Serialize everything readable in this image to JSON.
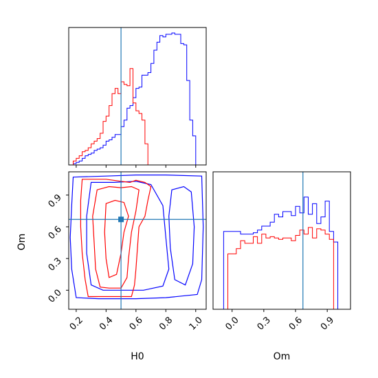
{
  "chart_data": {
    "type": "corner",
    "parameters": [
      "H0",
      "Om"
    ],
    "truth": {
      "H0": 0.5,
      "Om": 0.67
    },
    "series": [
      {
        "name": "",
        "color": "#ff0000"
      },
      {
        "name": "",
        "color": "#0000ff"
      }
    ],
    "truth_line_color": "#1f77b4",
    "panels": [
      {
        "id": "h0-marginal",
        "type": "histogram",
        "parameter": "H0",
        "xlim": [
          0.15,
          1.07
        ],
        "ylim": [
          0,
          1.0
        ],
        "x_ticks": [
          "0.2",
          "0.4",
          "0.6",
          "0.8",
          "1.0"
        ],
        "x_tick_values": [
          0.2,
          0.4,
          0.6,
          0.8,
          1.0
        ],
        "bins_x": [
          0.17,
          0.19,
          0.21,
          0.23,
          0.25,
          0.27,
          0.29,
          0.31,
          0.33,
          0.35,
          0.37,
          0.39,
          0.41,
          0.43,
          0.45,
          0.47,
          0.49,
          0.51,
          0.53,
          0.55,
          0.57,
          0.59,
          0.61,
          0.63,
          0.65,
          0.67,
          0.69,
          0.71,
          0.73,
          0.75,
          0.77,
          0.79,
          0.81,
          0.83,
          0.85,
          0.87,
          0.89,
          0.91,
          0.93,
          0.95,
          0.97,
          0.99,
          1.01,
          1.03
        ],
        "red_counts": [
          0.0,
          0.03,
          0.05,
          0.07,
          0.1,
          0.11,
          0.13,
          0.16,
          0.18,
          0.2,
          0.24,
          0.33,
          0.37,
          0.45,
          0.54,
          0.58,
          0.54,
          0.63,
          0.61,
          0.6,
          0.73,
          0.47,
          0.41,
          0.39,
          0.34,
          0.16,
          0.0,
          0.0,
          0.0,
          0.0,
          0.0,
          0.0,
          0.0,
          0.0,
          0.0,
          0.0,
          0.0,
          0.0,
          0.0,
          0.0,
          0.0,
          0.0,
          0.0,
          0.0
        ],
        "blue_counts": [
          0.0,
          0.01,
          0.02,
          0.03,
          0.05,
          0.07,
          0.08,
          0.09,
          0.11,
          0.12,
          0.13,
          0.15,
          0.18,
          0.19,
          0.21,
          0.23,
          0.23,
          0.29,
          0.34,
          0.43,
          0.45,
          0.51,
          0.58,
          0.59,
          0.68,
          0.68,
          0.7,
          0.77,
          0.87,
          0.93,
          0.98,
          0.97,
          0.99,
          0.99,
          1.0,
          0.99,
          0.99,
          0.92,
          0.91,
          0.64,
          0.34,
          0.22,
          0.0,
          0.0
        ]
      },
      {
        "id": "om-marginal",
        "type": "histogram",
        "parameter": "Om",
        "xlim": [
          -0.18,
          1.12
        ],
        "ylim": [
          0,
          1.0
        ],
        "x_ticks": [
          "0.0",
          "0.3",
          "0.6",
          "0.9"
        ],
        "x_tick_values": [
          0.0,
          0.3,
          0.6,
          0.9
        ],
        "bins_x": [
          -0.06,
          -0.02,
          0.02,
          0.06,
          0.1,
          0.14,
          0.18,
          0.22,
          0.26,
          0.3,
          0.34,
          0.38,
          0.42,
          0.46,
          0.5,
          0.54,
          0.58,
          0.62,
          0.66,
          0.7,
          0.74,
          0.78,
          0.82,
          0.86,
          0.9,
          0.94,
          0.98,
          1.02
        ],
        "red_counts": [
          0.0,
          0.42,
          0.42,
          0.46,
          0.52,
          0.5,
          0.5,
          0.55,
          0.5,
          0.57,
          0.54,
          0.55,
          0.54,
          0.53,
          0.54,
          0.54,
          0.52,
          0.56,
          0.6,
          0.57,
          0.62,
          0.54,
          0.61,
          0.6,
          0.57,
          0.53,
          0.0,
          0.0
        ],
        "blue_counts": [
          0.59,
          0.59,
          0.59,
          0.59,
          0.57,
          0.57,
          0.57,
          0.58,
          0.6,
          0.63,
          0.63,
          0.66,
          0.72,
          0.7,
          0.74,
          0.74,
          0.71,
          0.78,
          0.73,
          0.85,
          0.72,
          0.8,
          0.65,
          0.7,
          0.82,
          0.59,
          0.51,
          0.0
        ]
      },
      {
        "id": "h0-om-joint",
        "type": "contour",
        "xparameter": "H0",
        "yparameter": "Om",
        "xlim": [
          0.15,
          1.07
        ],
        "ylim": [
          -0.18,
          1.12
        ],
        "x_ticks": [
          "0.2",
          "0.4",
          "0.6",
          "0.8",
          "1.0"
        ],
        "x_tick_values": [
          0.2,
          0.4,
          0.6,
          0.8,
          1.0
        ],
        "y_ticks": [
          "0.0",
          "0.3",
          "0.6",
          "0.9"
        ],
        "y_tick_values": [
          0.0,
          0.3,
          0.6,
          0.9
        ],
        "red_contours": [
          [
            [
              0.24,
              1.05
            ],
            [
              0.4,
              1.05
            ],
            [
              0.5,
              1.03
            ],
            [
              0.56,
              1.02
            ],
            [
              0.6,
              1.04
            ],
            [
              0.66,
              1.02
            ],
            [
              0.7,
              0.98
            ],
            [
              0.68,
              0.85
            ],
            [
              0.66,
              0.7
            ],
            [
              0.62,
              0.6
            ],
            [
              0.61,
              0.4
            ],
            [
              0.6,
              0.2
            ],
            [
              0.59,
              0.05
            ],
            [
              0.57,
              -0.06
            ],
            [
              0.45,
              -0.06
            ],
            [
              0.35,
              -0.06
            ],
            [
              0.28,
              -0.06
            ],
            [
              0.26,
              0.1
            ],
            [
              0.24,
              0.35
            ],
            [
              0.23,
              0.6
            ],
            [
              0.23,
              0.85
            ],
            [
              0.24,
              1.05
            ]
          ],
          [
            [
              0.34,
              0.95
            ],
            [
              0.42,
              0.98
            ],
            [
              0.5,
              0.97
            ],
            [
              0.57,
              0.98
            ],
            [
              0.62,
              0.95
            ],
            [
              0.6,
              0.75
            ],
            [
              0.57,
              0.55
            ],
            [
              0.55,
              0.3
            ],
            [
              0.54,
              0.12
            ],
            [
              0.5,
              0.02
            ],
            [
              0.42,
              0.02
            ],
            [
              0.36,
              0.03
            ],
            [
              0.33,
              0.2
            ],
            [
              0.32,
              0.45
            ],
            [
              0.31,
              0.7
            ],
            [
              0.34,
              0.95
            ]
          ],
          [
            [
              0.4,
              0.82
            ],
            [
              0.46,
              0.85
            ],
            [
              0.52,
              0.83
            ],
            [
              0.55,
              0.7
            ],
            [
              0.52,
              0.55
            ],
            [
              0.5,
              0.35
            ],
            [
              0.47,
              0.15
            ],
            [
              0.42,
              0.12
            ],
            [
              0.4,
              0.3
            ],
            [
              0.39,
              0.55
            ],
            [
              0.4,
              0.82
            ]
          ]
        ],
        "blue_contours": [
          [
            [
              0.18,
              1.07
            ],
            [
              0.4,
              1.08
            ],
            [
              0.6,
              1.09
            ],
            [
              0.8,
              1.09
            ],
            [
              1.04,
              1.08
            ],
            [
              1.05,
              0.6
            ],
            [
              1.04,
              0.1
            ],
            [
              1.01,
              -0.04
            ],
            [
              0.8,
              -0.07
            ],
            [
              0.6,
              -0.08
            ],
            [
              0.35,
              -0.08
            ],
            [
              0.2,
              -0.07
            ],
            [
              0.17,
              0.2
            ],
            [
              0.16,
              0.5
            ],
            [
              0.17,
              0.8
            ],
            [
              0.18,
              1.07
            ]
          ],
          [
            [
              0.3,
              1.02
            ],
            [
              0.45,
              1.02
            ],
            [
              0.6,
              1.03
            ],
            [
              0.7,
              1.0
            ],
            [
              0.78,
              0.8
            ],
            [
              0.8,
              0.5
            ],
            [
              0.82,
              0.2
            ],
            [
              0.78,
              0.04
            ],
            [
              0.65,
              0.0
            ],
            [
              0.5,
              0.0
            ],
            [
              0.38,
              0.0
            ],
            [
              0.3,
              0.05
            ],
            [
              0.27,
              0.35
            ],
            [
              0.27,
              0.7
            ],
            [
              0.3,
              1.02
            ]
          ],
          [
            [
              0.84,
              0.95
            ],
            [
              0.92,
              0.98
            ],
            [
              0.97,
              0.93
            ],
            [
              0.99,
              0.6
            ],
            [
              0.98,
              0.25
            ],
            [
              0.93,
              0.05
            ],
            [
              0.86,
              0.1
            ],
            [
              0.83,
              0.4
            ],
            [
              0.82,
              0.7
            ],
            [
              0.84,
              0.95
            ]
          ]
        ]
      }
    ],
    "xlabels": [
      "H0",
      "Om"
    ],
    "ylabels": [
      "",
      "Om"
    ]
  }
}
